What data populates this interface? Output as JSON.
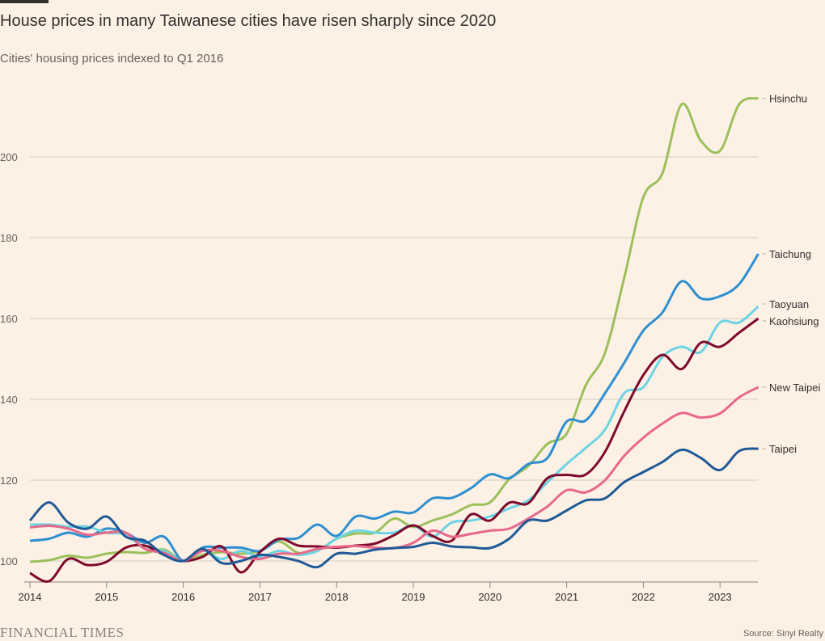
{
  "title": "House prices in many Taiwanese cities have risen sharply since 2020",
  "subtitle": "Cities' housing prices indexed to Q1 2016",
  "brand": "FINANCIAL TIMES",
  "source": "Source: Sinyi Realty",
  "chart_data": {
    "type": "line",
    "title": "House prices in many Taiwanese cities have risen sharply since 2020",
    "subtitle": "Cities' housing prices indexed to Q1 2016",
    "xlabel": "",
    "ylabel": "",
    "x_start": "2014 Q1",
    "x_frequency": "quarterly",
    "x": [
      2014.0,
      2014.25,
      2014.5,
      2014.75,
      2015.0,
      2015.25,
      2015.5,
      2015.75,
      2016.0,
      2016.25,
      2016.5,
      2016.75,
      2017.0,
      2017.25,
      2017.5,
      2017.75,
      2018.0,
      2018.25,
      2018.5,
      2018.75,
      2019.0,
      2019.25,
      2019.5,
      2019.75,
      2020.0,
      2020.25,
      2020.5,
      2020.75,
      2021.0,
      2021.25,
      2021.5,
      2021.75,
      2022.0,
      2022.25,
      2022.5,
      2022.75,
      2023.0,
      2023.25,
      2023.5
    ],
    "xlim": [
      2014,
      2023.5
    ],
    "ylim": [
      93,
      218
    ],
    "x_ticks": [
      "2014",
      "2015",
      "2016",
      "2017",
      "2018",
      "2019",
      "2020",
      "2021",
      "2022",
      "2023"
    ],
    "y_ticks": [
      "100",
      "120",
      "140",
      "160",
      "180",
      "200"
    ],
    "grid": "horizontal",
    "legend": "direct labels at line ends (right)",
    "series": [
      {
        "name": "Hsinchu",
        "color": "#9bc05a",
        "values": [
          99.8,
          100.2,
          101.3,
          100.8,
          101.8,
          102.2,
          102,
          102.8,
          100,
          101.5,
          102.2,
          101.8,
          102.5,
          104.8,
          102,
          102.5,
          105.5,
          106.8,
          107,
          110.5,
          108.4,
          110,
          111.5,
          113.8,
          114.5,
          120.2,
          123.5,
          129,
          131.5,
          143.5,
          151.5,
          170,
          190,
          196,
          213,
          204,
          201.5,
          213,
          214.5
        ]
      },
      {
        "name": "Taichung",
        "color": "#2e8fd0",
        "values": [
          105,
          105.5,
          107,
          106,
          108,
          107,
          104.5,
          106,
          100,
          103.3,
          103.3,
          103.3,
          102.5,
          105.3,
          105.7,
          109,
          106.2,
          111,
          110.5,
          112.2,
          112,
          115.5,
          115.6,
          118,
          121.4,
          120.5,
          124,
          125.5,
          134.5,
          134.8,
          141.5,
          149,
          157,
          161.5,
          169.2,
          165,
          165.5,
          168.5,
          176
        ]
      },
      {
        "name": "Taoyuan",
        "color": "#6dd3e3",
        "values": [
          109,
          109,
          108.5,
          108.5,
          107,
          106.5,
          103,
          102.5,
          100,
          102.5,
          100.5,
          102.5,
          101,
          102.5,
          101.5,
          102.5,
          105.5,
          107.5,
          107,
          107,
          108.8,
          106,
          109.5,
          110,
          111,
          113,
          115,
          119.5,
          124,
          128,
          132.5,
          141.5,
          143,
          150.5,
          153,
          151.7,
          159,
          159,
          163
        ]
      },
      {
        "name": "Kaohsiung",
        "color": "#7d0a2c",
        "values": [
          97,
          95,
          100.5,
          99,
          99.8,
          103.3,
          103.8,
          101.5,
          100,
          101,
          103.6,
          97.2,
          102.2,
          105.5,
          103.8,
          103.6,
          103.3,
          103.8,
          104.3,
          106.4,
          108.8,
          106.2,
          105,
          111.5,
          110,
          114.4,
          114.3,
          120.5,
          121.3,
          121.4,
          127,
          137,
          146,
          151,
          147.5,
          154,
          153,
          156.5,
          160
        ]
      },
      {
        "name": "New Taipei",
        "color": "#e8688a",
        "values": [
          108.3,
          108.7,
          108,
          106.5,
          107,
          107,
          103,
          102,
          100,
          102.5,
          102.5,
          101,
          100.5,
          101.8,
          101.8,
          103,
          103.5,
          103.7,
          103.3,
          103.2,
          104.5,
          107.5,
          106,
          106.7,
          107.5,
          108,
          110.5,
          113.5,
          117.5,
          117,
          120,
          126,
          130.5,
          134,
          136.6,
          135.5,
          136.5,
          140.5,
          143
        ]
      },
      {
        "name": "Taipei",
        "color": "#1f5a96",
        "values": [
          110,
          114.5,
          109.5,
          108,
          111,
          106,
          105,
          101.5,
          100,
          103,
          99.5,
          100,
          101.5,
          101,
          100,
          98.5,
          101.8,
          101.8,
          102.8,
          103.2,
          103.5,
          104.5,
          103.6,
          103.4,
          103.2,
          105.5,
          110,
          110,
          112.5,
          115,
          115.5,
          119.5,
          122,
          124.5,
          127.5,
          125.5,
          122.5,
          127.2,
          127.8
        ]
      }
    ]
  }
}
